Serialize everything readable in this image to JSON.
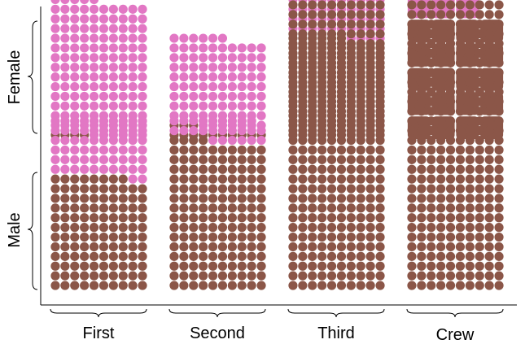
{
  "chart_data": {
    "type": "waffle",
    "colors": {
      "survived": "#e277c4",
      "perished": "#8b5648"
    },
    "columns": [
      "First",
      "Second",
      "Third",
      "Crew"
    ],
    "rows": [
      "Female",
      "Male"
    ],
    "cells": [
      {
        "row": "Female",
        "column": "First",
        "survived": 141,
        "perished": 4,
        "grid_columns": 10,
        "unit": 1
      },
      {
        "row": "Female",
        "column": "Second",
        "survived": 93,
        "perished": 13,
        "grid_columns": 10,
        "unit": 1
      },
      {
        "row": "Female",
        "column": "Third",
        "survived": 90,
        "perished": 106,
        "grid_columns": 10,
        "unit": 1
      },
      {
        "row": "Female",
        "column": "Crew",
        "survived": 3,
        "perished": 20,
        "grid_columns": 4,
        "unit": 1
      },
      {
        "row": "Male",
        "column": "First",
        "survived": 62,
        "perished": 118,
        "grid_columns": 10,
        "unit": 1
      },
      {
        "row": "Male",
        "column": "Second",
        "survived": 25,
        "perished": 154,
        "grid_columns": 10,
        "unit": 1
      },
      {
        "row": "Male",
        "column": "Third",
        "survived": 88,
        "perished": 422,
        "grid_columns": 10,
        "unit": 1
      },
      {
        "row": "Male",
        "column": "Crew",
        "survived": 192,
        "perished": 670,
        "grid_columns": 10,
        "unit": 1
      }
    ]
  }
}
